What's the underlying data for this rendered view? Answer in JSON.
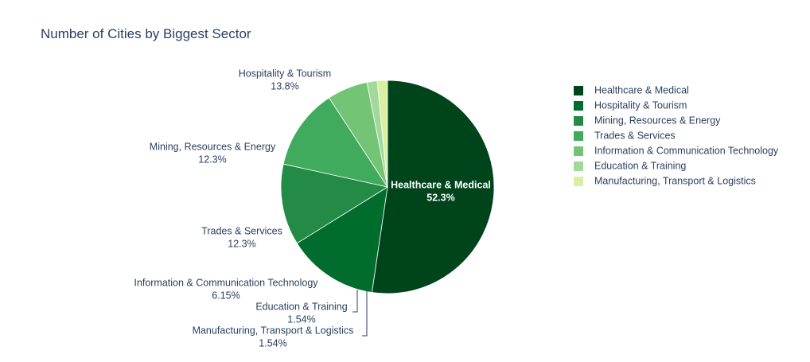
{
  "chart_data": {
    "type": "pie",
    "title": "Number of Cities by Biggest Sector",
    "slices": [
      {
        "label": "Healthcare & Medical",
        "percent_label": "52.3%",
        "value": 52.3,
        "color": "#00441b"
      },
      {
        "label": "Hospitality & Tourism",
        "percent_label": "13.8%",
        "value": 13.8,
        "color": "#006d2c"
      },
      {
        "label": "Mining, Resources & Energy",
        "percent_label": "12.3%",
        "value": 12.3,
        "color": "#238b45"
      },
      {
        "label": "Trades & Services",
        "percent_label": "12.3%",
        "value": 12.3,
        "color": "#41ab5d"
      },
      {
        "label": "Information & Communication Technology",
        "percent_label": "6.15%",
        "value": 6.15,
        "color": "#74c476"
      },
      {
        "label": "Education & Training",
        "percent_label": "1.54%",
        "value": 1.54,
        "color": "#a1d99b"
      },
      {
        "label": "Manufacturing, Transport & Logistics",
        "percent_label": "1.54%",
        "value": 1.54,
        "color": "#d9f0a3"
      }
    ],
    "legend": {
      "position": "right"
    },
    "direction": "clockwise",
    "start": "top"
  }
}
